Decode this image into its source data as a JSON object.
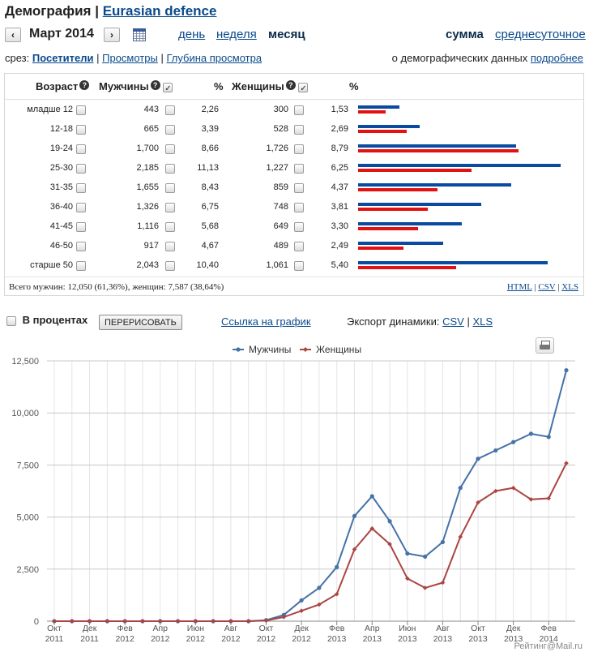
{
  "header": {
    "title_prefix": "Демография",
    "separator": "|",
    "site_link": "Eurasian defence"
  },
  "date_nav": {
    "prev": "‹",
    "next": "›",
    "current": "Март 2014",
    "icon": "calendar-icon"
  },
  "periods": {
    "day": "день",
    "week": "неделя",
    "month": "месяц"
  },
  "aggregation": {
    "sum": "сумма",
    "daily_avg": "среднесуточное"
  },
  "slice": {
    "label": "срез:",
    "visitors": "Посетители",
    "views": "Просмотры",
    "depth": "Глубина просмотра",
    "sep": "|"
  },
  "demo_note": {
    "text": "о демографических данных",
    "link": "подробнее"
  },
  "table": {
    "headers": {
      "age": "Возраст",
      "men": "Мужчины",
      "pct": "%",
      "women": "Женщины"
    },
    "help_icon": "?",
    "rows": [
      {
        "age": "младше 12",
        "men": "443",
        "men_pct": "2,26",
        "women": "300",
        "women_pct": "1,53",
        "m_share": 0.2026,
        "f_share": 0.1374
      },
      {
        "age": "12-18",
        "men": "665",
        "men_pct": "3,39",
        "women": "528",
        "women_pct": "2,69",
        "m_share": 0.3043,
        "f_share": 0.2416
      },
      {
        "age": "19-24",
        "men": "1,700",
        "men_pct": "8,66",
        "women": "1,726",
        "women_pct": "8,79",
        "m_share": 0.778,
        "f_share": 0.79
      },
      {
        "age": "25-30",
        "men": "2,185",
        "men_pct": "11,13",
        "women": "1,227",
        "women_pct": "6,25",
        "m_share": 1.0,
        "f_share": 0.5616
      },
      {
        "age": "31-35",
        "men": "1,655",
        "men_pct": "8,43",
        "women": "859",
        "women_pct": "4,37",
        "m_share": 0.7574,
        "f_share": 0.3931
      },
      {
        "age": "36-40",
        "men": "1,326",
        "men_pct": "6,75",
        "women": "748",
        "women_pct": "3,81",
        "m_share": 0.6069,
        "f_share": 0.3423
      },
      {
        "age": "41-45",
        "men": "1,116",
        "men_pct": "5,68",
        "women": "649",
        "women_pct": "3,30",
        "m_share": 0.5107,
        "f_share": 0.297
      },
      {
        "age": "46-50",
        "men": "917",
        "men_pct": "4,67",
        "women": "489",
        "women_pct": "2,49",
        "m_share": 0.4197,
        "f_share": 0.2238
      },
      {
        "age": "старше 50",
        "men": "2,043",
        "men_pct": "10,40",
        "women": "1,061",
        "women_pct": "5,40",
        "m_share": 0.935,
        "f_share": 0.4856
      }
    ],
    "summary": "Всего мужчин: 12,050 (61,36%), женщин: 7,587 (38,64%)",
    "exports": {
      "html": "HTML",
      "csv": "CSV",
      "xls": "XLS",
      "sep": "|"
    },
    "colors": {
      "men": "#0a4aa0",
      "women": "#e31212"
    }
  },
  "controls": {
    "percent_label": "В процентах",
    "redraw": "ПЕРЕРИСОВАТЬ",
    "chart_link": "Ссылка на график",
    "export_label": "Экспорт динамики:",
    "csv": "CSV",
    "xls": "XLS",
    "sep": "|"
  },
  "credit": "Рейтинг@Mail.ru",
  "chart_data": {
    "type": "line",
    "title": "",
    "xlabel": "",
    "ylabel": "",
    "ylim": [
      0,
      12500
    ],
    "yticks": [
      "0",
      "2,500",
      "5,000",
      "7,500",
      "10,000",
      "12,500"
    ],
    "ytick_values": [
      0,
      2500,
      5000,
      7500,
      10000,
      12500
    ],
    "legend": "top-center",
    "grid": true,
    "x": [
      "Окт 2011",
      "Ноя 2011",
      "Дек 2011",
      "Янв 2012",
      "Фев 2012",
      "Мар 2012",
      "Апр 2012",
      "Май 2012",
      "Июн 2012",
      "Июл 2012",
      "Авг 2012",
      "Сен 2012",
      "Окт 2012",
      "Ноя 2012",
      "Дек 2012",
      "Янв 2013",
      "Фев 2013",
      "Мар 2013",
      "Апр 2013",
      "Май 2013",
      "Июн 2013",
      "Июл 2013",
      "Авг 2013",
      "Сен 2013",
      "Окт 2013",
      "Ноя 2013",
      "Дек 2013",
      "Янв 2014",
      "Фев 2014",
      "Мар 2014"
    ],
    "xtick_labels": [
      {
        "i": 0,
        "month": "Окт",
        "year": "2011"
      },
      {
        "i": 2,
        "month": "Дек",
        "year": "2011"
      },
      {
        "i": 4,
        "month": "Фев",
        "year": "2012"
      },
      {
        "i": 6,
        "month": "Апр",
        "year": "2012"
      },
      {
        "i": 8,
        "month": "Июн",
        "year": "2012"
      },
      {
        "i": 10,
        "month": "Авг",
        "year": "2012"
      },
      {
        "i": 12,
        "month": "Окт",
        "year": "2012"
      },
      {
        "i": 14,
        "month": "Дек",
        "year": "2012"
      },
      {
        "i": 16,
        "month": "Фев",
        "year": "2013"
      },
      {
        "i": 18,
        "month": "Апр",
        "year": "2013"
      },
      {
        "i": 20,
        "month": "Июн",
        "year": "2013"
      },
      {
        "i": 22,
        "month": "Авг",
        "year": "2013"
      },
      {
        "i": 24,
        "month": "Окт",
        "year": "2013"
      },
      {
        "i": 26,
        "month": "Дек",
        "year": "2013"
      },
      {
        "i": 28,
        "month": "Фев",
        "year": "2014"
      }
    ],
    "series": [
      {
        "name": "Мужчины",
        "color": "#4572a7",
        "values": [
          0,
          0,
          0,
          0,
          0,
          0,
          0,
          0,
          0,
          0,
          0,
          0,
          50,
          300,
          1000,
          1600,
          2600,
          5050,
          6000,
          4800,
          3250,
          3100,
          3800,
          6400,
          7800,
          8200,
          8600,
          9000,
          8850,
          12050
        ]
      },
      {
        "name": "Женщины",
        "color": "#aa4643",
        "values": [
          0,
          0,
          0,
          0,
          0,
          0,
          0,
          0,
          0,
          0,
          0,
          0,
          30,
          200,
          500,
          800,
          1300,
          3450,
          4450,
          3700,
          2050,
          1600,
          1850,
          4050,
          5700,
          6250,
          6400,
          5850,
          5900,
          7587
        ]
      }
    ]
  }
}
